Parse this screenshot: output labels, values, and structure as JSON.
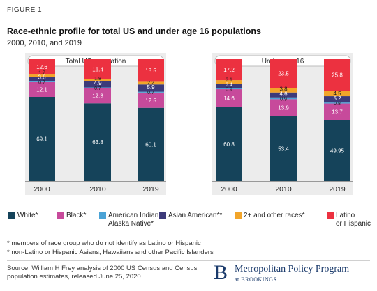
{
  "figure_label": "FIGURE 1",
  "title": "Race-ethnic profile for total US and under age 16 populations",
  "subtitle": "2000, 2010, and 2019",
  "colors": {
    "white": "#15435a",
    "black": "#c74a9b",
    "aian": "#4ba3d6",
    "asian": "#3d3a7a",
    "other": "#f2a52a",
    "latino": "#ec3140",
    "panel_bg": "#ececec"
  },
  "chart_data": [
    {
      "type": "bar",
      "stacked": true,
      "title": "Total US population",
      "categories": [
        "2000",
        "2010",
        "2019"
      ],
      "ylim": [
        0,
        100
      ],
      "series": [
        {
          "name": "White*",
          "key": "white",
          "values": [
            69.1,
            63.8,
            60.1
          ],
          "labels": [
            "69.1",
            "63.8",
            "60.1"
          ]
        },
        {
          "name": "Black*",
          "key": "black",
          "values": [
            12.1,
            12.3,
            12.5
          ],
          "labels": [
            "12.1",
            "12.3",
            "12.5"
          ]
        },
        {
          "name": "American Indian Alaska Native*",
          "key": "aian",
          "values": [
            0.7,
            0.7,
            0.7
          ],
          "labels": [
            "0.7",
            "0.7",
            "0.7"
          ]
        },
        {
          "name": "Asian American**",
          "key": "asian",
          "values": [
            3.8,
            4.9,
            5.9
          ],
          "labels": [
            "3.8",
            "4.9",
            "5.9"
          ]
        },
        {
          "name": "2+ and other races*",
          "key": "other",
          "values": [
            1.7,
            1.8,
            2.2
          ],
          "labels": [
            "1.7",
            "1.8",
            "2.2"
          ]
        },
        {
          "name": "Latino or Hispanic",
          "key": "latino",
          "values": [
            12.6,
            16.4,
            18.5
          ],
          "labels": [
            "12.6",
            "16.4",
            "18.5"
          ]
        }
      ]
    },
    {
      "type": "bar",
      "stacked": true,
      "title": "Under age 16",
      "categories": [
        "2000",
        "2010",
        "2019"
      ],
      "ylim": [
        0,
        100
      ],
      "series": [
        {
          "name": "White*",
          "key": "white",
          "values": [
            60.8,
            53.4,
            49.95
          ],
          "labels": [
            "60.8",
            "53.4",
            "49.95"
          ]
        },
        {
          "name": "Black*",
          "key": "black",
          "values": [
            14.6,
            13.9,
            13.7
          ],
          "labels": [
            "14.6",
            "13.9",
            "13.7"
          ]
        },
        {
          "name": "American Indian Alaska Native*",
          "key": "aian",
          "values": [
            0.9,
            0.9,
            0.8
          ],
          "labels": [
            "0.9",
            "0.9",
            "0.8"
          ]
        },
        {
          "name": "Asian American**",
          "key": "asian",
          "values": [
            3.4,
            4.6,
            5.2
          ],
          "labels": [
            "3.4",
            "4.6",
            "5.2"
          ]
        },
        {
          "name": "2+ and other races*",
          "key": "other",
          "values": [
            3.1,
            3.8,
            4.5
          ],
          "labels": [
            "3.1",
            "3.8",
            "4.5"
          ]
        },
        {
          "name": "Latino or Hispanic",
          "key": "latino",
          "values": [
            17.2,
            23.5,
            25.8
          ],
          "labels": [
            "17.2",
            "23.5",
            "25.8"
          ]
        }
      ]
    }
  ],
  "legend": [
    {
      "key": "white",
      "label": "White*"
    },
    {
      "key": "black",
      "label": "Black*"
    },
    {
      "key": "aian",
      "label": "American Indian\nAlaska Native*"
    },
    {
      "key": "asian",
      "label": "Asian American**"
    },
    {
      "key": "other",
      "label": "2+ and other races*"
    },
    {
      "key": "latino",
      "label": "Latino\nor Hispanic"
    }
  ],
  "notes": [
    "* members of race group who do not identify as Latino or Hispanic",
    "* non-Latino or Hispanic Asians, Hawaiians and other Pacific Islanders"
  ],
  "source": "Source: William H Frey analysis of 2000 US Census and Census population estimates, released June 25, 2020",
  "logo": {
    "mark": "B",
    "title": "Metropolitan Policy Program",
    "subtitle": "at BROOKINGS"
  }
}
